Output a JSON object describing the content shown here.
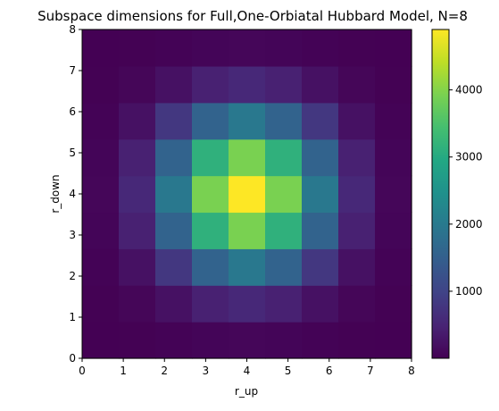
{
  "chart_data": {
    "type": "heatmap",
    "title": "Subspace dimensions for Full,One-Orbiatal Hubbard Model, N=8",
    "xlabel": "r_up",
    "ylabel": "r_down",
    "xlim": [
      0,
      8
    ],
    "ylim": [
      0,
      8
    ],
    "x_ticks": [
      0,
      1,
      2,
      3,
      4,
      5,
      6,
      7,
      8
    ],
    "y_ticks": [
      0,
      1,
      2,
      3,
      4,
      5,
      6,
      7,
      8
    ],
    "x_tick_labels": [
      "0",
      "1",
      "2",
      "3",
      "4",
      "5",
      "6",
      "7",
      "8"
    ],
    "y_tick_labels": [
      "0",
      "1",
      "2",
      "3",
      "4",
      "5",
      "6",
      "7",
      "8"
    ],
    "colormap": "viridis",
    "colorbar": {
      "vmin": 1,
      "vmax": 4900,
      "ticks": [
        1000,
        2000,
        3000,
        4000
      ],
      "tick_labels": [
        "1000",
        "2000",
        "3000",
        "4000"
      ]
    },
    "grid_size": 9,
    "row_order": "r_down ascending from 0 to 8",
    "values": [
      [
        1,
        8,
        28,
        56,
        70,
        56,
        28,
        8,
        1
      ],
      [
        8,
        64,
        224,
        448,
        560,
        448,
        224,
        64,
        8
      ],
      [
        28,
        224,
        784,
        1568,
        1960,
        1568,
        784,
        224,
        28
      ],
      [
        56,
        448,
        1568,
        3136,
        3920,
        3136,
        1568,
        448,
        56
      ],
      [
        70,
        560,
        1960,
        3920,
        4900,
        3920,
        1960,
        560,
        70
      ],
      [
        56,
        448,
        1568,
        3136,
        3920,
        3136,
        1568,
        448,
        56
      ],
      [
        28,
        224,
        784,
        1568,
        1960,
        1568,
        784,
        224,
        28
      ],
      [
        8,
        64,
        224,
        448,
        560,
        448,
        224,
        64,
        8
      ],
      [
        1,
        8,
        28,
        56,
        70,
        56,
        28,
        8,
        1
      ]
    ]
  }
}
